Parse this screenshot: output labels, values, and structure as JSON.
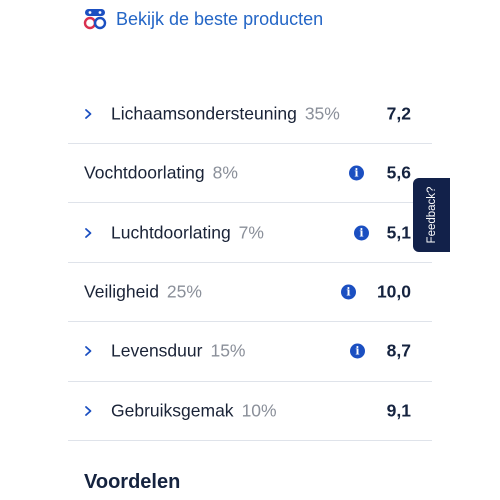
{
  "top_link": {
    "icon": "products-logo-icon",
    "label": "Bekijk de beste producten"
  },
  "criteria": [
    {
      "label": "Lichaamsondersteuning",
      "weight": "35%",
      "score": "7,2",
      "expandable": true,
      "info": false
    },
    {
      "label": "Vochtdoorlating",
      "weight": "8%",
      "score": "5,6",
      "expandable": false,
      "info": true
    },
    {
      "label": "Luchtdoorlating",
      "weight": "7%",
      "score": "5,1",
      "expandable": true,
      "info": true
    },
    {
      "label": "Veiligheid",
      "weight": "25%",
      "score": "10,0",
      "expandable": false,
      "info": true
    },
    {
      "label": "Levensduur",
      "weight": "15%",
      "score": "8,7",
      "expandable": true,
      "info": true
    },
    {
      "label": "Gebruiksgemak",
      "weight": "10%",
      "score": "9,1",
      "expandable": true,
      "info": false
    }
  ],
  "info_glyph": "i",
  "feedback": {
    "label": "Feedback?"
  },
  "section_title": "Voordelen",
  "colors": {
    "link": "#2466c6",
    "info": "#1b4fc1",
    "navy": "#12214a",
    "muted": "#8a8f99",
    "divider": "#dfe3ea"
  }
}
